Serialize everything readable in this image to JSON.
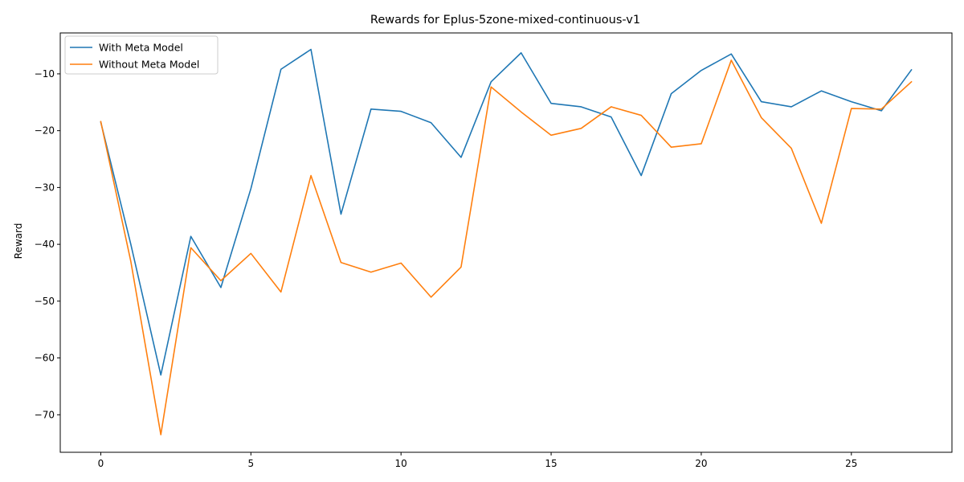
{
  "chart_data": {
    "type": "line",
    "title": "Rewards for Eplus-5zone-mixed-continuous-v1",
    "xlabel": "",
    "ylabel": "Reward",
    "xlim": [
      -1.35,
      28.35
    ],
    "ylim": [
      -76.6,
      -2.8
    ],
    "xticks": [
      0,
      5,
      10,
      15,
      20,
      25
    ],
    "yticks": [
      -70,
      -60,
      -50,
      -40,
      -30,
      -20,
      -10
    ],
    "grid": false,
    "legend_position": "top-left",
    "x": [
      0,
      1,
      2,
      3,
      4,
      5,
      6,
      7,
      8,
      9,
      10,
      11,
      12,
      13,
      14,
      15,
      16,
      17,
      18,
      19,
      20,
      21,
      22,
      23,
      24,
      25,
      26,
      27
    ],
    "series": [
      {
        "name": "With Meta Model",
        "color": "#1f77b4",
        "values": [
          -18.5,
          -40.0,
          -63.0,
          -38.6,
          -47.6,
          -30.2,
          -9.2,
          -5.7,
          -34.7,
          -16.2,
          -16.6,
          -18.6,
          -24.7,
          -11.4,
          -6.3,
          -15.2,
          -15.8,
          -17.6,
          -27.9,
          -13.5,
          -9.4,
          -6.5,
          -14.9,
          -15.8,
          -13.0,
          -14.9,
          -16.5,
          -9.3
        ]
      },
      {
        "name": "Without Meta Model",
        "color": "#ff7f0e",
        "values": [
          -18.4,
          -43.0,
          -73.5,
          -40.6,
          -46.4,
          -41.6,
          -48.4,
          -27.9,
          -43.2,
          -44.9,
          -43.3,
          -49.3,
          -44.0,
          -12.3,
          -16.7,
          -20.8,
          -19.6,
          -15.8,
          -17.3,
          -22.9,
          -22.3,
          -7.6,
          -17.7,
          -23.1,
          -36.3,
          -16.1,
          -16.2,
          -11.4
        ]
      }
    ]
  }
}
